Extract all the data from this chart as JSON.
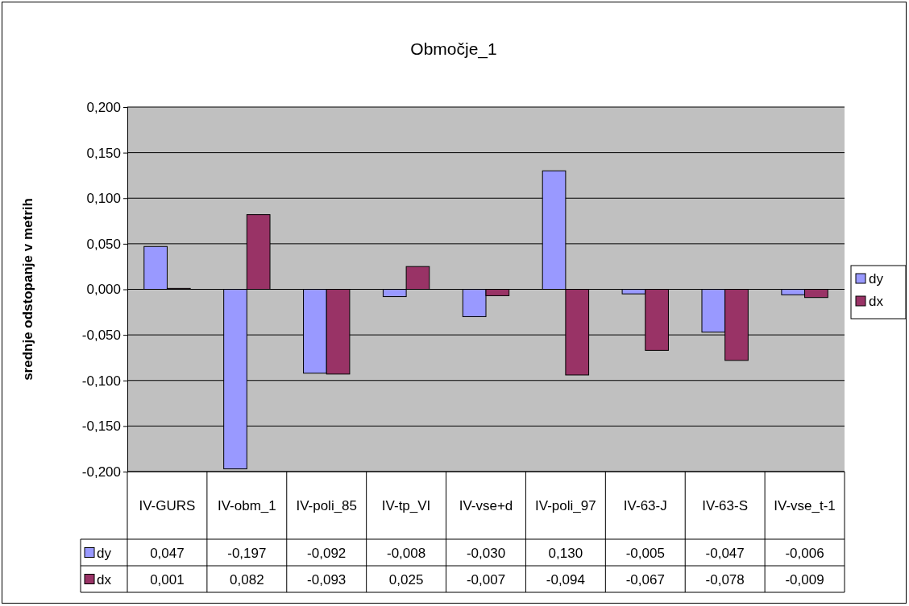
{
  "chart_data": {
    "type": "bar",
    "title": "Območje_1",
    "ylabel": "srednje odstopanje v metrih",
    "categories": [
      "IV-GURS",
      "IV-obm_1",
      "IV-poli_85",
      "IV-tp_VI",
      "IV-vse+d",
      "IV-poli_97",
      "IV-63-J",
      "IV-63-S",
      "IV-vse_t-1"
    ],
    "series": [
      {
        "name": "dy",
        "color": "#9999ff",
        "values": [
          0.047,
          -0.197,
          -0.092,
          -0.008,
          -0.03,
          0.13,
          -0.005,
          -0.047,
          -0.006
        ],
        "value_labels": [
          "0,047",
          "-0,197",
          "-0,092",
          "-0,008",
          "-0,030",
          "0,130",
          "-0,005",
          "-0,047",
          "-0,006"
        ]
      },
      {
        "name": "dx",
        "color": "#993366",
        "values": [
          0.001,
          0.082,
          -0.093,
          0.025,
          -0.007,
          -0.094,
          -0.067,
          -0.078,
          -0.009
        ],
        "value_labels": [
          "0,001",
          "0,082",
          "-0,093",
          "0,025",
          "-0,007",
          "-0,094",
          "-0,067",
          "-0,078",
          "-0,009"
        ]
      }
    ],
    "ylim": [
      -0.2,
      0.2
    ],
    "yticks": [
      {
        "value": -0.2,
        "label": "-0,200"
      },
      {
        "value": -0.15,
        "label": "-0,150"
      },
      {
        "value": -0.1,
        "label": "-0,100"
      },
      {
        "value": -0.05,
        "label": "-0,050"
      },
      {
        "value": 0,
        "label": "0,000"
      },
      {
        "value": 0.05,
        "label": "0,050"
      },
      {
        "value": 0.1,
        "label": "0,100"
      },
      {
        "value": 0.15,
        "label": "0,150"
      },
      {
        "value": 0.2,
        "label": "0,200"
      }
    ],
    "grid": "y",
    "legend": "right"
  }
}
